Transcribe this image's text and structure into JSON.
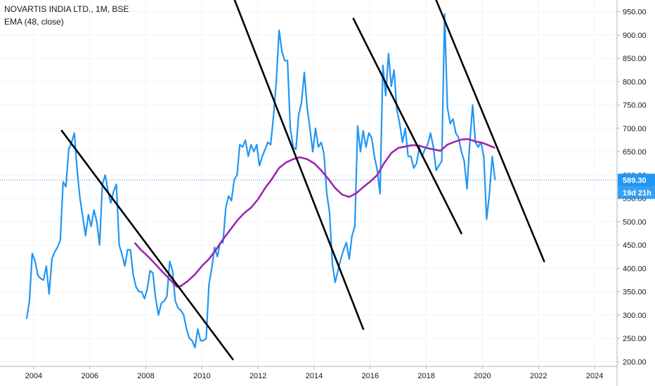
{
  "legend": {
    "title": "NOVARTIS INDIA LTD., 1M, BSE",
    "indicator": "EMA (48, close)"
  },
  "colors": {
    "price": "#2196f3",
    "ema": "#9c27b0",
    "trendline": "#000000",
    "grid": "#f0f3fa",
    "current_price_line": "#2196f3",
    "tag_bg": "#2196f3"
  },
  "price_tag": {
    "value": "589.30",
    "countdown": "19d 21h"
  },
  "chart_data": {
    "type": "line",
    "title": "NOVARTIS INDIA LTD., 1M, BSE",
    "xlabel": "",
    "ylabel": "",
    "xlim": [
      2003.0,
      2025.0
    ],
    "ylim": [
      190,
      975
    ],
    "x_ticks": [
      2004,
      2006,
      2008,
      2010,
      2012,
      2014,
      2016,
      2018,
      2020,
      2022,
      2024
    ],
    "y_ticks": [
      200,
      250,
      300,
      350,
      400,
      450,
      500,
      550,
      600,
      650,
      700,
      750,
      800,
      850,
      900,
      950
    ],
    "y_tick_labels": [
      "200.00",
      "250.00",
      "300.00",
      "350.00",
      "400.00",
      "450.00",
      "500.00",
      "550.00",
      "600.00",
      "650.00",
      "700.00",
      "750.00",
      "800.00",
      "850.00",
      "900.00",
      "950.00"
    ],
    "grid": true,
    "series": [
      {
        "name": "NOVARTIS INDIA LTD., 1M, BSE",
        "points": [
          [
            2003.75,
            292
          ],
          [
            2003.85,
            330
          ],
          [
            2003.95,
            432
          ],
          [
            2004.05,
            415
          ],
          [
            2004.15,
            385
          ],
          [
            2004.25,
            378
          ],
          [
            2004.35,
            375
          ],
          [
            2004.45,
            405
          ],
          [
            2004.55,
            345
          ],
          [
            2004.65,
            420
          ],
          [
            2004.75,
            435
          ],
          [
            2004.85,
            445
          ],
          [
            2004.95,
            460
          ],
          [
            2005.05,
            585
          ],
          [
            2005.15,
            575
          ],
          [
            2005.25,
            655
          ],
          [
            2005.35,
            670
          ],
          [
            2005.45,
            690
          ],
          [
            2005.55,
            610
          ],
          [
            2005.65,
            550
          ],
          [
            2005.75,
            510
          ],
          [
            2005.85,
            470
          ],
          [
            2005.95,
            515
          ],
          [
            2006.05,
            490
          ],
          [
            2006.15,
            525
          ],
          [
            2006.25,
            500
          ],
          [
            2006.35,
            450
          ],
          [
            2006.45,
            580
          ],
          [
            2006.55,
            600
          ],
          [
            2006.65,
            565
          ],
          [
            2006.75,
            540
          ],
          [
            2006.85,
            565
          ],
          [
            2006.95,
            580
          ],
          [
            2007.05,
            450
          ],
          [
            2007.15,
            430
          ],
          [
            2007.25,
            405
          ],
          [
            2007.35,
            440
          ],
          [
            2007.45,
            440
          ],
          [
            2007.55,
            385
          ],
          [
            2007.65,
            360
          ],
          [
            2007.75,
            350
          ],
          [
            2007.85,
            350
          ],
          [
            2007.95,
            335
          ],
          [
            2008.05,
            355
          ],
          [
            2008.15,
            395
          ],
          [
            2008.25,
            390
          ],
          [
            2008.35,
            335
          ],
          [
            2008.45,
            300
          ],
          [
            2008.55,
            325
          ],
          [
            2008.65,
            330
          ],
          [
            2008.75,
            340
          ],
          [
            2008.85,
            415
          ],
          [
            2008.95,
            395
          ],
          [
            2009.05,
            330
          ],
          [
            2009.15,
            315
          ],
          [
            2009.25,
            310
          ],
          [
            2009.35,
            300
          ],
          [
            2009.45,
            270
          ],
          [
            2009.55,
            250
          ],
          [
            2009.65,
            245
          ],
          [
            2009.75,
            230
          ],
          [
            2009.85,
            270
          ],
          [
            2009.95,
            245
          ],
          [
            2010.05,
            245
          ],
          [
            2010.15,
            250
          ],
          [
            2010.25,
            365
          ],
          [
            2010.35,
            400
          ],
          [
            2010.45,
            445
          ],
          [
            2010.55,
            425
          ],
          [
            2010.65,
            455
          ],
          [
            2010.75,
            455
          ],
          [
            2010.85,
            530
          ],
          [
            2010.95,
            555
          ],
          [
            2011.05,
            545
          ],
          [
            2011.15,
            590
          ],
          [
            2011.25,
            600
          ],
          [
            2011.35,
            665
          ],
          [
            2011.45,
            660
          ],
          [
            2011.55,
            675
          ],
          [
            2011.65,
            640
          ],
          [
            2011.75,
            665
          ],
          [
            2011.85,
            650
          ],
          [
            2011.95,
            665
          ],
          [
            2012.05,
            620
          ],
          [
            2012.15,
            640
          ],
          [
            2012.25,
            655
          ],
          [
            2012.35,
            670
          ],
          [
            2012.45,
            665
          ],
          [
            2012.55,
            725
          ],
          [
            2012.65,
            800
          ],
          [
            2012.75,
            910
          ],
          [
            2012.85,
            865
          ],
          [
            2012.95,
            845
          ],
          [
            2013.05,
            845
          ],
          [
            2013.15,
            700
          ],
          [
            2013.25,
            660
          ],
          [
            2013.35,
            655
          ],
          [
            2013.45,
            730
          ],
          [
            2013.55,
            755
          ],
          [
            2013.65,
            820
          ],
          [
            2013.75,
            745
          ],
          [
            2013.85,
            700
          ],
          [
            2013.95,
            650
          ],
          [
            2014.05,
            700
          ],
          [
            2014.15,
            660
          ],
          [
            2014.25,
            670
          ],
          [
            2014.35,
            645
          ],
          [
            2014.45,
            560
          ],
          [
            2014.55,
            520
          ],
          [
            2014.65,
            410
          ],
          [
            2014.75,
            370
          ],
          [
            2014.85,
            395
          ],
          [
            2014.95,
            420
          ],
          [
            2015.05,
            440
          ],
          [
            2015.15,
            455
          ],
          [
            2015.25,
            420
          ],
          [
            2015.35,
            470
          ],
          [
            2015.45,
            490
          ],
          [
            2015.55,
            705
          ],
          [
            2015.65,
            650
          ],
          [
            2015.75,
            695
          ],
          [
            2015.85,
            660
          ],
          [
            2015.95,
            690
          ],
          [
            2016.05,
            680
          ],
          [
            2016.15,
            640
          ],
          [
            2016.25,
            610
          ],
          [
            2016.35,
            560
          ],
          [
            2016.45,
            835
          ],
          [
            2016.55,
            770
          ],
          [
            2016.65,
            860
          ],
          [
            2016.75,
            790
          ],
          [
            2016.85,
            825
          ],
          [
            2016.95,
            740
          ],
          [
            2017.05,
            710
          ],
          [
            2017.15,
            670
          ],
          [
            2017.25,
            700
          ],
          [
            2017.35,
            640
          ],
          [
            2017.45,
            640
          ],
          [
            2017.55,
            615
          ],
          [
            2017.65,
            625
          ],
          [
            2017.75,
            660
          ],
          [
            2017.85,
            640
          ],
          [
            2017.95,
            655
          ],
          [
            2018.05,
            665
          ],
          [
            2018.15,
            690
          ],
          [
            2018.25,
            660
          ],
          [
            2018.35,
            610
          ],
          [
            2018.45,
            620
          ],
          [
            2018.55,
            630
          ],
          [
            2018.65,
            945
          ],
          [
            2018.75,
            745
          ],
          [
            2018.85,
            710
          ],
          [
            2018.95,
            720
          ],
          [
            2019.05,
            690
          ],
          [
            2019.15,
            680
          ],
          [
            2019.25,
            650
          ],
          [
            2019.35,
            630
          ],
          [
            2019.45,
            570
          ],
          [
            2019.55,
            670
          ],
          [
            2019.65,
            750
          ],
          [
            2019.75,
            670
          ],
          [
            2019.85,
            660
          ],
          [
            2019.95,
            670
          ],
          [
            2020.05,
            640
          ],
          [
            2020.15,
            505
          ],
          [
            2020.25,
            560
          ],
          [
            2020.35,
            640
          ],
          [
            2020.45,
            589.3
          ]
        ]
      },
      {
        "name": "EMA (48, close)",
        "points": [
          [
            2007.6,
            455
          ],
          [
            2007.8,
            441
          ],
          [
            2008.0,
            430
          ],
          [
            2008.2,
            418
          ],
          [
            2008.4,
            405
          ],
          [
            2008.6,
            392
          ],
          [
            2008.8,
            380
          ],
          [
            2009.0,
            367
          ],
          [
            2009.1,
            361
          ],
          [
            2009.25,
            362
          ],
          [
            2009.5,
            373
          ],
          [
            2009.75,
            387
          ],
          [
            2010.0,
            405
          ],
          [
            2010.25,
            420
          ],
          [
            2010.5,
            440
          ],
          [
            2010.75,
            462
          ],
          [
            2011.0,
            482
          ],
          [
            2011.25,
            502
          ],
          [
            2011.5,
            518
          ],
          [
            2011.75,
            530
          ],
          [
            2012.0,
            548
          ],
          [
            2012.25,
            572
          ],
          [
            2012.5,
            592
          ],
          [
            2012.75,
            615
          ],
          [
            2013.0,
            627
          ],
          [
            2013.25,
            634
          ],
          [
            2013.5,
            638
          ],
          [
            2013.75,
            634
          ],
          [
            2014.0,
            625
          ],
          [
            2014.25,
            610
          ],
          [
            2014.5,
            592
          ],
          [
            2014.75,
            572
          ],
          [
            2015.0,
            558
          ],
          [
            2015.25,
            553
          ],
          [
            2015.5,
            561
          ],
          [
            2015.75,
            574
          ],
          [
            2016.0,
            586
          ],
          [
            2016.25,
            600
          ],
          [
            2016.5,
            626
          ],
          [
            2016.75,
            647
          ],
          [
            2017.0,
            658
          ],
          [
            2017.25,
            661
          ],
          [
            2017.5,
            664
          ],
          [
            2017.75,
            663
          ],
          [
            2018.0,
            658
          ],
          [
            2018.25,
            655
          ],
          [
            2018.5,
            652
          ],
          [
            2018.75,
            665
          ],
          [
            2019.0,
            671
          ],
          [
            2019.25,
            676
          ],
          [
            2019.5,
            677
          ],
          [
            2019.75,
            672
          ],
          [
            2020.0,
            669
          ],
          [
            2020.25,
            663
          ],
          [
            2020.45,
            658
          ]
        ]
      }
    ],
    "trendlines": [
      [
        [
          2005.0,
          695
        ],
        [
          2011.1,
          205
        ]
      ],
      [
        [
          2011.1,
          985
        ],
        [
          2015.75,
          270
        ]
      ],
      [
        [
          2015.4,
          935
        ],
        [
          2019.25,
          475
        ]
      ],
      [
        [
          2018.35,
          975
        ],
        [
          2022.2,
          415
        ]
      ]
    ],
    "last_value": 589.3
  }
}
